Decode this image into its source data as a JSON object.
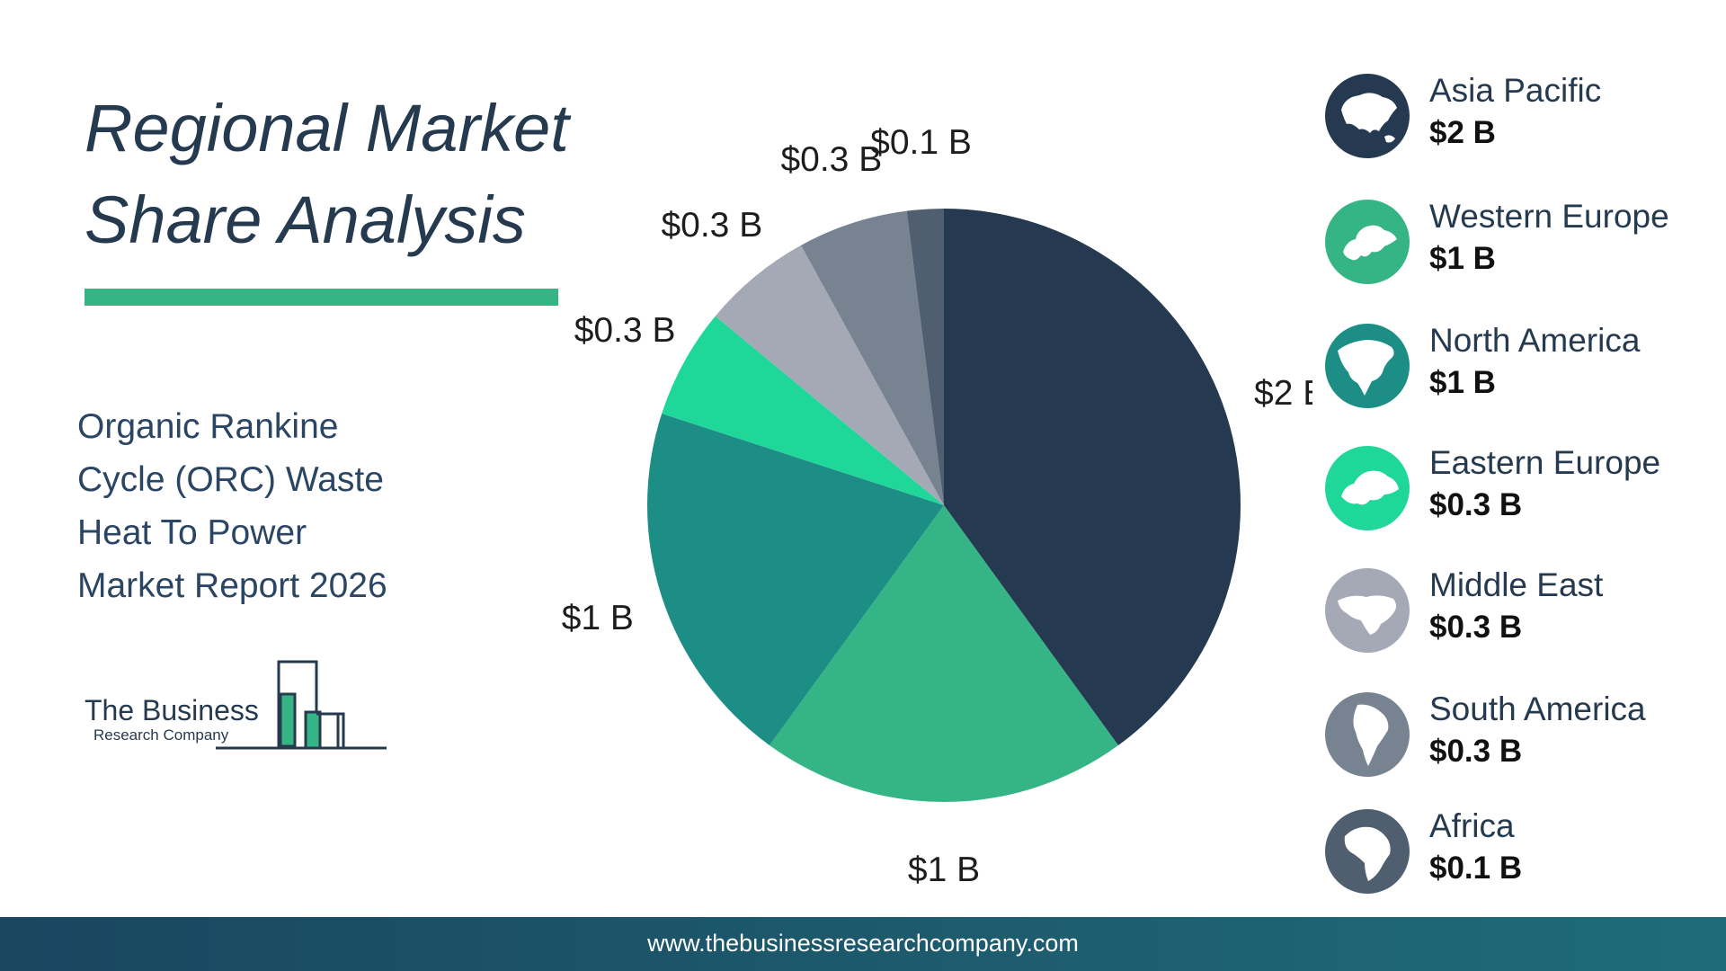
{
  "header": {
    "title_line1": "Regional Market",
    "title_line2": "Share Analysis"
  },
  "report": {
    "line1": "Organic Rankine",
    "line2": "Cycle (ORC) Waste",
    "line3": "Heat To Power",
    "line4": "Market Report 2026"
  },
  "logo": {
    "line1": "The Business",
    "line2": "Research Company"
  },
  "footer": {
    "url": "www.thebusinessresearchcompany.com"
  },
  "colors": {
    "title": "#263A4F",
    "accent_bar": "#35B585",
    "asia_pacific": "#253A50",
    "western_europe": "#35B585",
    "north_america": "#1C8E85",
    "eastern_europe": "#20D79A",
    "middle_east": "#A5A9B5",
    "south_america": "#788392",
    "africa": "#4F5F6F",
    "footer_start": "#1A4660",
    "footer_end": "#1F6C78"
  },
  "chart_data": {
    "type": "pie",
    "unit": "B",
    "slices": [
      {
        "name": "Asia Pacific",
        "value": 2,
        "label": "$2 B",
        "color": "#253A50",
        "icon": "asia-map-icon"
      },
      {
        "name": "Western Europe",
        "value": 1,
        "label": "$1 B",
        "color": "#35B585",
        "icon": "western-europe-map-icon"
      },
      {
        "name": "North America",
        "value": 1,
        "label": "$1 B",
        "color": "#1C8E85",
        "icon": "north-america-map-icon"
      },
      {
        "name": "Eastern Europe",
        "value": 0.3,
        "label": "$0.3 B",
        "color": "#20D79A",
        "icon": "eastern-europe-map-icon"
      },
      {
        "name": "Middle East",
        "value": 0.3,
        "label": "$0.3 B",
        "color": "#A5A9B5",
        "icon": "middle-east-map-icon"
      },
      {
        "name": "South America",
        "value": 0.3,
        "label": "$0.3 B",
        "color": "#788392",
        "icon": "south-america-map-icon"
      },
      {
        "name": "Africa",
        "value": 0.1,
        "label": "$0.1 B",
        "color": "#4F5F6F",
        "icon": "africa-map-icon"
      }
    ],
    "start_angle": "top",
    "direction": "clockwise",
    "legend_position": "right"
  }
}
